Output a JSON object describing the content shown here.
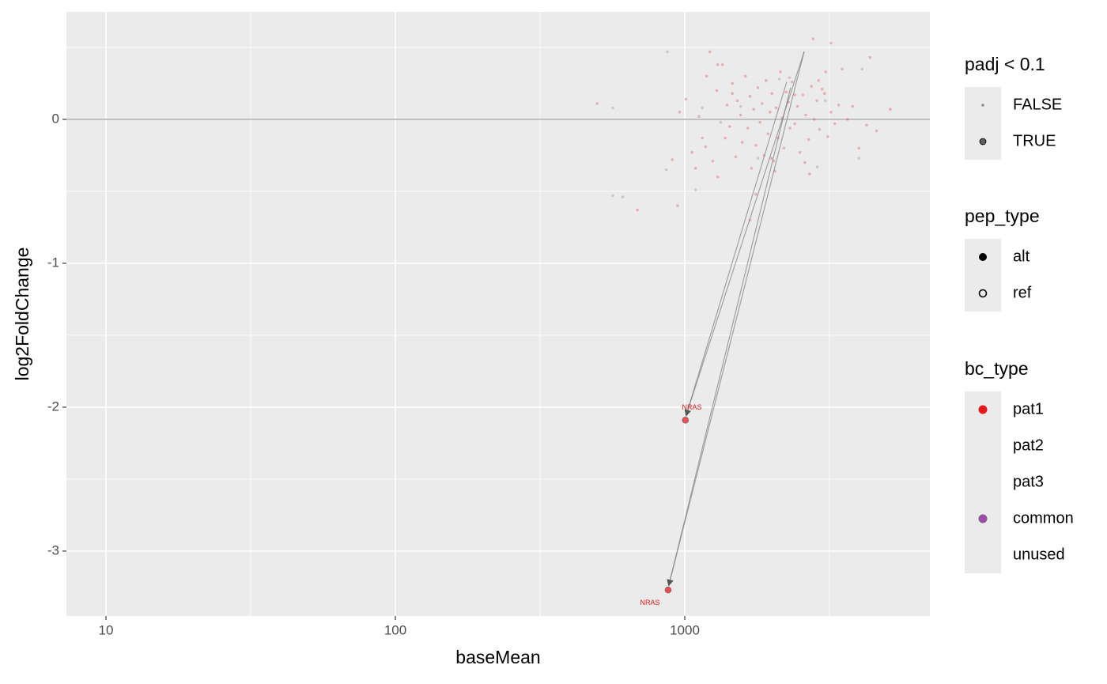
{
  "chart_data": {
    "type": "scatter",
    "x_label": "baseMean",
    "y_label": "log2FoldChange",
    "xlog": true,
    "xlim": [
      7.3,
      7031
    ],
    "ylim": [
      -3.451,
      0.747
    ],
    "xticks": [
      10,
      100,
      1000
    ],
    "yticks": [
      0,
      -1,
      -2,
      -3
    ],
    "x_minor_grid": [
      31.62,
      316.2,
      3162
    ],
    "y_minor_grid": [
      0.5,
      -0.5,
      -1.5,
      -2.5
    ],
    "hline": 0,
    "grid": true,
    "series": [
      {
        "color": "#E41A1C",
        "padj": false,
        "x": [
          1010,
          1060,
          1120,
          1150,
          1190,
          1220,
          1250,
          1290,
          1300,
          1350,
          1380,
          1400,
          1430,
          1460,
          1500,
          1520,
          1560,
          1580,
          1620,
          1650,
          1680,
          1700,
          1730,
          1760,
          1790,
          1820,
          1850,
          1880,
          1910,
          1940,
          1970,
          2000,
          2030,
          2070,
          2100,
          2140,
          2170,
          2200,
          2240,
          2280,
          2310,
          2350,
          2400,
          2450,
          2500,
          2560,
          2620,
          2680,
          2740,
          2800,
          2860,
          2920,
          2980,
          3040,
          3120,
          3200,
          3300,
          3400,
          3500,
          3650,
          3800,
          4000,
          4250,
          4600,
          1680,
          1760,
          1300,
          1090,
          1180,
          1460,
          2050,
          2700,
          3070,
          1990,
          2400,
          2600,
          2900,
          498,
          686,
          945,
          5130,
          2775,
          3200,
          4365,
          905,
          960
        ],
        "values": [
          0.14,
          -0.23,
          0.02,
          -0.13,
          0.3,
          0.47,
          -0.29,
          0.2,
          -0.4,
          0.38,
          -0.13,
          0.1,
          -0.05,
          0.25,
          -0.26,
          0.13,
          0.03,
          -0.16,
          0.3,
          -0.06,
          0.16,
          -0.34,
          0.07,
          -0.18,
          0.22,
          -0.02,
          0.11,
          -0.25,
          0.27,
          -0.1,
          0.05,
          0.18,
          -0.29,
          0.08,
          -0.13,
          0.33,
          0.01,
          -0.2,
          0.19,
          0.12,
          -0.06,
          0.26,
          -0.03,
          0.09,
          -0.23,
          0.17,
          0.03,
          -0.14,
          0.23,
          0.0,
          0.13,
          -0.07,
          0.21,
          0.18,
          -0.12,
          0.05,
          -0.03,
          0.1,
          0.35,
          0.0,
          0.09,
          -0.2,
          -0.04,
          -0.08,
          -0.7,
          -0.52,
          0.38,
          -0.34,
          -0.19,
          0.18,
          -0.36,
          -0.38,
          0.33,
          -0.27,
          0.17,
          -0.3,
          0.27,
          0.11,
          -0.63,
          -0.6,
          0.07,
          0.56,
          0.53,
          0.43,
          -0.28,
          0.05
        ]
      },
      {
        "color": "#984EA3",
        "padj": false,
        "x": [
          871,
          564,
          564,
          611,
          863,
          1090,
          2870,
          4000,
          4100,
          1790,
          2120,
          3060,
          1330,
          2300,
          1560,
          1150
        ],
        "values": [
          0.47,
          0.08,
          -0.53,
          -0.54,
          -0.35,
          -0.49,
          -0.33,
          -0.27,
          0.35,
          -0.27,
          0.28,
          0.13,
          -0.02,
          0.29,
          0.09,
          0.08
        ]
      },
      {
        "color": "#E41A1C",
        "padj": true,
        "x": [
          1005,
          876
        ],
        "values": [
          -2.09,
          -3.27
        ]
      }
    ],
    "segments": [
      {
        "x": [
          2585,
          1010
        ],
        "y": [
          0.47,
          -2.06
        ]
      },
      {
        "x": [
          2585,
          880
        ],
        "y": [
          0.47,
          -3.24
        ]
      },
      {
        "x": [
          2320,
          880
        ],
        "y": [
          0.22,
          -3.24
        ]
      },
      {
        "x": [
          2250,
          1010
        ],
        "y": [
          0.26,
          -2.06
        ]
      }
    ],
    "annotations": [
      {
        "label": "NRAS",
        "x": 1058,
        "y": -2.005,
        "color": "#E41A1C"
      },
      {
        "label": "NRAS",
        "x": 758,
        "y": -3.36,
        "color": "#E41A1C"
      }
    ],
    "legends": [
      {
        "title": "padj < 0.1",
        "keys": [
          {
            "label": "FALSE",
            "shape": "small-dot"
          },
          {
            "label": "TRUE",
            "shape": "large-dot"
          }
        ]
      },
      {
        "title": "pep_type",
        "keys": [
          {
            "label": "alt",
            "shape": "filled-circle"
          },
          {
            "label": "ref",
            "shape": "open-circle"
          }
        ]
      },
      {
        "title": "bc_type",
        "keys": [
          {
            "label": "pat1",
            "color": "#E41A1C"
          },
          {
            "label": "pat2"
          },
          {
            "label": "pat3"
          },
          {
            "label": "common",
            "color": "#984EA3"
          },
          {
            "label": "unused"
          }
        ]
      }
    ]
  }
}
